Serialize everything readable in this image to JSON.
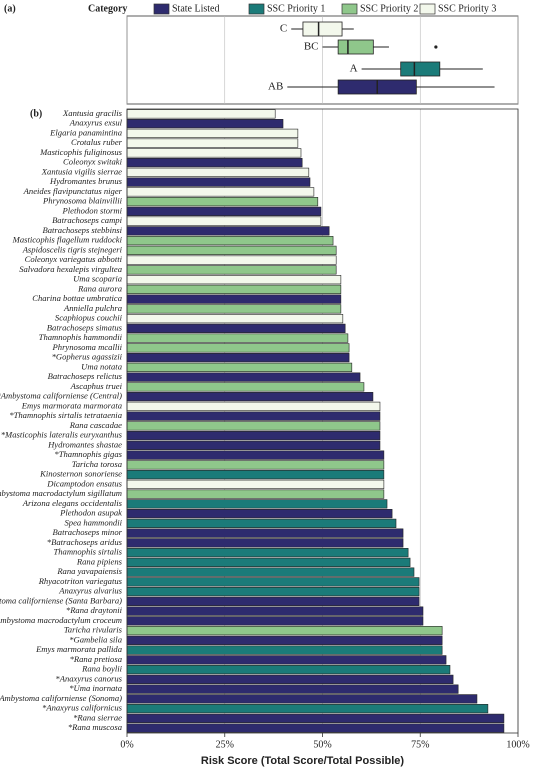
{
  "chart_data": [
    {
      "type": "box",
      "panel_label": "(a)",
      "legend_title": "Category",
      "legend": [
        {
          "name": "State Listed",
          "color": "#2e2b6e"
        },
        {
          "name": "SSC Priority 1",
          "color": "#1b7b79"
        },
        {
          "name": "SSC Priority 2",
          "color": "#8fc78b"
        },
        {
          "name": "SSC Priority 3",
          "color": "#f3f8ec"
        }
      ],
      "categories": [
        "C",
        "BC",
        "A",
        "AB"
      ],
      "colors": [
        "#f3f8ec",
        "#8fc78b",
        "#1b7b79",
        "#2e2b6e"
      ],
      "boxes": [
        {
          "min": 42,
          "q1": 45,
          "median": 49,
          "q3": 55,
          "max": 58,
          "outliers": []
        },
        {
          "min": 50,
          "q1": 54,
          "median": 56.5,
          "q3": 63,
          "max": 67,
          "outliers": [
            79
          ]
        },
        {
          "min": 60,
          "q1": 70,
          "median": 73.5,
          "q3": 80,
          "max": 91,
          "outliers": []
        },
        {
          "min": 41,
          "q1": 54,
          "median": 64,
          "q3": 74,
          "max": 94,
          "outliers": []
        }
      ],
      "xlim": [
        0,
        100
      ],
      "xticks": [
        0,
        25,
        50,
        75,
        100
      ],
      "grid": true
    },
    {
      "type": "barh",
      "panel_label": "(b)",
      "xlabel": "Risk Score (Total Score/Total Possible)",
      "categories": [
        "Xantusia gracilis",
        "Anaxyrus exsul",
        "Elgaria panamintina",
        "Crotalus ruber",
        "Masticophis fuliginosus",
        "Coleonyx switaki",
        "Xantusia vigilis sierrae",
        "Hydromantes brunus",
        "Aneides flavipunctatus niger",
        "Phrynosoma blainvillii",
        "Plethodon stormi",
        "Batrachoseps campi",
        "Batrachoseps stebbinsi",
        "Masticophis flagellum ruddocki",
        "Aspidoscelis tigris stejnegeri",
        "Coleonyx variegatus abbotti",
        "Salvadora hexalepis virgultea",
        "Uma scoparia",
        "Rana aurora",
        "Charina bottae umbratica",
        "Anniella pulchra",
        "Scaphiopus couchii",
        "Batrachoseps simatus",
        "Thamnophis hammondii",
        "Phrynosoma mcallii",
        "*Gopherus agassizii",
        "Uma notata",
        "Batrachoseps relictus",
        "Ascaphus truei",
        "*Ambystoma californiense (Central)",
        "Emys marmorata marmorata",
        "*Thamnophis sirtalis tetrataenia",
        "Rana cascadae",
        "*Masticophis lateralis euryxanthus",
        "Hydromantes shastae",
        "*Thamnophis gigas",
        "Taricha torosa",
        "Kinosternon sonoriense",
        "Dicamptodon ensatus",
        "Ambystoma macrodactylum sigillatum",
        "Arizona elegans occidentalis",
        "Plethodon asupak",
        "Spea hammondii",
        "Batrachoseps minor",
        "*Batrachoseps aridus",
        "Thamnophis sirtalis",
        "Rana pipiens",
        "Rana yavapaiensis",
        "Rhyacotriton variegatus",
        "Anaxyrus alvarius",
        "*Ambystoma californiense (Santa Barbara)",
        "*Rana draytonii",
        "*Ambystoma macrodactylum croceum",
        "Taricha rivularis",
        "*Gambelia sila",
        "Emys marmorata pallida",
        "*Rana pretiosa",
        "Rana boylii",
        "*Anaxyrus canorus",
        "*Uma inornata",
        "*Ambystoma californiense (Sonoma)",
        "*Anaxyrus californicus",
        "*Rana sierrae",
        "*Rana muscosa"
      ],
      "values": [
        37.9,
        39.9,
        43.7,
        43.7,
        44.5,
        44.8,
        46.5,
        46.8,
        47.8,
        48.8,
        49.6,
        49.6,
        51.7,
        52.7,
        53.5,
        53.5,
        53.5,
        54.7,
        54.7,
        54.7,
        54.7,
        55.2,
        55.8,
        56.5,
        56.8,
        56.8,
        57.5,
        59.6,
        60.6,
        62.9,
        64.7,
        64.7,
        64.7,
        64.7,
        64.7,
        65.7,
        65.7,
        65.7,
        65.7,
        65.7,
        66.5,
        67.8,
        68.8,
        70.6,
        70.6,
        71.9,
        72.4,
        73.4,
        74.7,
        74.7,
        74.7,
        75.7,
        75.7,
        80.6,
        80.6,
        80.6,
        81.6,
        82.6,
        83.4,
        84.7,
        89.5,
        92.3,
        96.4,
        96.4
      ],
      "colors": [
        "#f3f8ec",
        "#2e2b6e",
        "#f3f8ec",
        "#f3f8ec",
        "#f3f8ec",
        "#2e2b6e",
        "#f3f8ec",
        "#2e2b6e",
        "#f3f8ec",
        "#8fc78b",
        "#2e2b6e",
        "#f3f8ec",
        "#2e2b6e",
        "#8fc78b",
        "#8fc78b",
        "#f3f8ec",
        "#8fc78b",
        "#f3f8ec",
        "#8fc78b",
        "#2e2b6e",
        "#8fc78b",
        "#f3f8ec",
        "#2e2b6e",
        "#8fc78b",
        "#8fc78b",
        "#2e2b6e",
        "#8fc78b",
        "#2e2b6e",
        "#8fc78b",
        "#2e2b6e",
        "#f3f8ec",
        "#2e2b6e",
        "#8fc78b",
        "#2e2b6e",
        "#2e2b6e",
        "#2e2b6e",
        "#8fc78b",
        "#1b7b79",
        "#f3f8ec",
        "#8fc78b",
        "#1b7b79",
        "#2e2b6e",
        "#1b7b79",
        "#2e2b6e",
        "#2e2b6e",
        "#1b7b79",
        "#1b7b79",
        "#1b7b79",
        "#1b7b79",
        "#1b7b79",
        "#2e2b6e",
        "#2e2b6e",
        "#2e2b6e",
        "#8fc78b",
        "#2e2b6e",
        "#1b7b79",
        "#2e2b6e",
        "#1b7b79",
        "#2e2b6e",
        "#2e2b6e",
        "#2e2b6e",
        "#1b7b79",
        "#2e2b6e",
        "#2e2b6e"
      ],
      "xlim": [
        0,
        100
      ],
      "xticks": [
        {
          "value": 0,
          "label": "0%"
        },
        {
          "value": 25,
          "label": "25%"
        },
        {
          "value": 50,
          "label": "50%"
        },
        {
          "value": 75,
          "label": "75%"
        },
        {
          "value": 100,
          "label": "100%"
        }
      ],
      "grid": true
    }
  ]
}
